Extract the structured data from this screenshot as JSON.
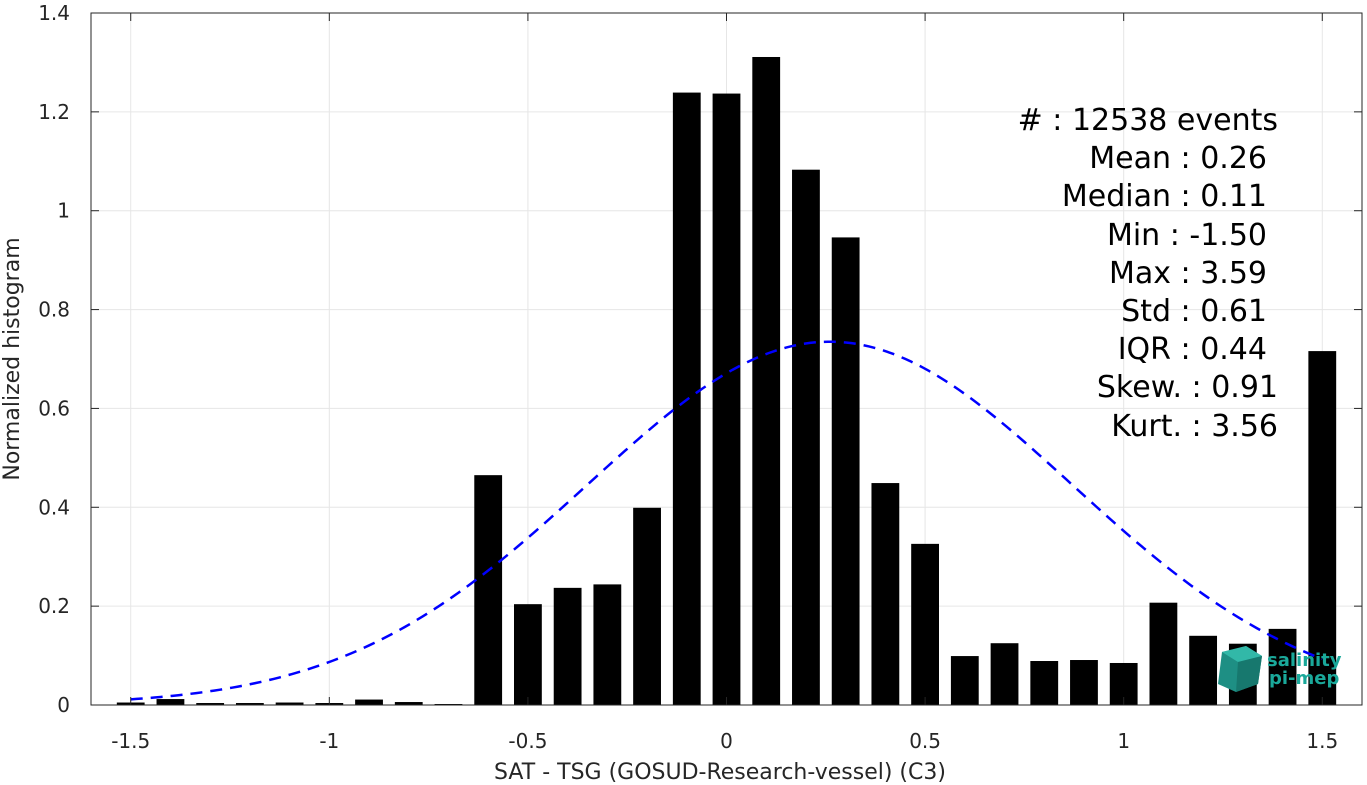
{
  "chart_data": {
    "type": "bar",
    "xlabel": "SAT - TSG (GOSUD-Research-vessel) (C3)",
    "ylabel": "Normalized histogram",
    "xlim": [
      -1.6,
      1.6
    ],
    "ylim": [
      0,
      1.4
    ],
    "grid": true,
    "xticks": [
      -1.5,
      -1,
      -0.5,
      0,
      0.5,
      1,
      1.5
    ],
    "xtick_labels": [
      "-1.5",
      "-1",
      "-0.5",
      "0",
      "0.5",
      "1",
      "1.5"
    ],
    "yticks": [
      0,
      0.2,
      0.4,
      0.6,
      0.8,
      1,
      1.2,
      1.4
    ],
    "ytick_labels": [
      "0",
      "0.2",
      "0.4",
      "0.6",
      "0.8",
      "1",
      "1.2",
      "1.4"
    ],
    "bar_width": 0.07,
    "bar_color": "#000000",
    "bins": [
      {
        "x": -1.5,
        "y": 0.005
      },
      {
        "x": -1.4,
        "y": 0.012
      },
      {
        "x": -1.3,
        "y": 0.004
      },
      {
        "x": -1.2,
        "y": 0.004
      },
      {
        "x": -1.1,
        "y": 0.005
      },
      {
        "x": -1.0,
        "y": 0.004
      },
      {
        "x": -0.9,
        "y": 0.011
      },
      {
        "x": -0.8,
        "y": 0.006
      },
      {
        "x": -0.7,
        "y": 0.002
      },
      {
        "x": -0.6,
        "y": 0.465
      },
      {
        "x": -0.5,
        "y": 0.204
      },
      {
        "x": -0.4,
        "y": 0.237
      },
      {
        "x": -0.3,
        "y": 0.244
      },
      {
        "x": -0.2,
        "y": 0.399
      },
      {
        "x": -0.1,
        "y": 1.239
      },
      {
        "x": 0.0,
        "y": 1.237
      },
      {
        "x": 0.1,
        "y": 1.311
      },
      {
        "x": 0.2,
        "y": 1.083
      },
      {
        "x": 0.3,
        "y": 0.946
      },
      {
        "x": 0.4,
        "y": 0.449
      },
      {
        "x": 0.5,
        "y": 0.326
      },
      {
        "x": 0.6,
        "y": 0.099
      },
      {
        "x": 0.7,
        "y": 0.125
      },
      {
        "x": 0.8,
        "y": 0.089
      },
      {
        "x": 0.9,
        "y": 0.091
      },
      {
        "x": 1.0,
        "y": 0.085
      },
      {
        "x": 1.1,
        "y": 0.207
      },
      {
        "x": 1.2,
        "y": 0.14
      },
      {
        "x": 1.3,
        "y": 0.124
      },
      {
        "x": 1.4,
        "y": 0.154
      },
      {
        "x": 1.5,
        "y": 0.716
      }
    ],
    "fit": {
      "type": "gaussian",
      "mean": 0.26,
      "std": 0.61,
      "peak": 0.735,
      "x_range": [
        -1.5,
        1.5
      ],
      "color": "#0000ff",
      "style": "dashed"
    },
    "annotations": [
      "#  : 12538 events",
      "Mean : 0.26",
      "Median : 0.11",
      "Min : -1.50",
      "Max : 3.59",
      "Std : 0.61",
      "IQR : 0.44",
      "Skew. : 0.91",
      "Kurt. : 3.56"
    ]
  },
  "logo": {
    "line1": "salinity",
    "line2": "pi-mep",
    "color": "#1aa89a"
  }
}
